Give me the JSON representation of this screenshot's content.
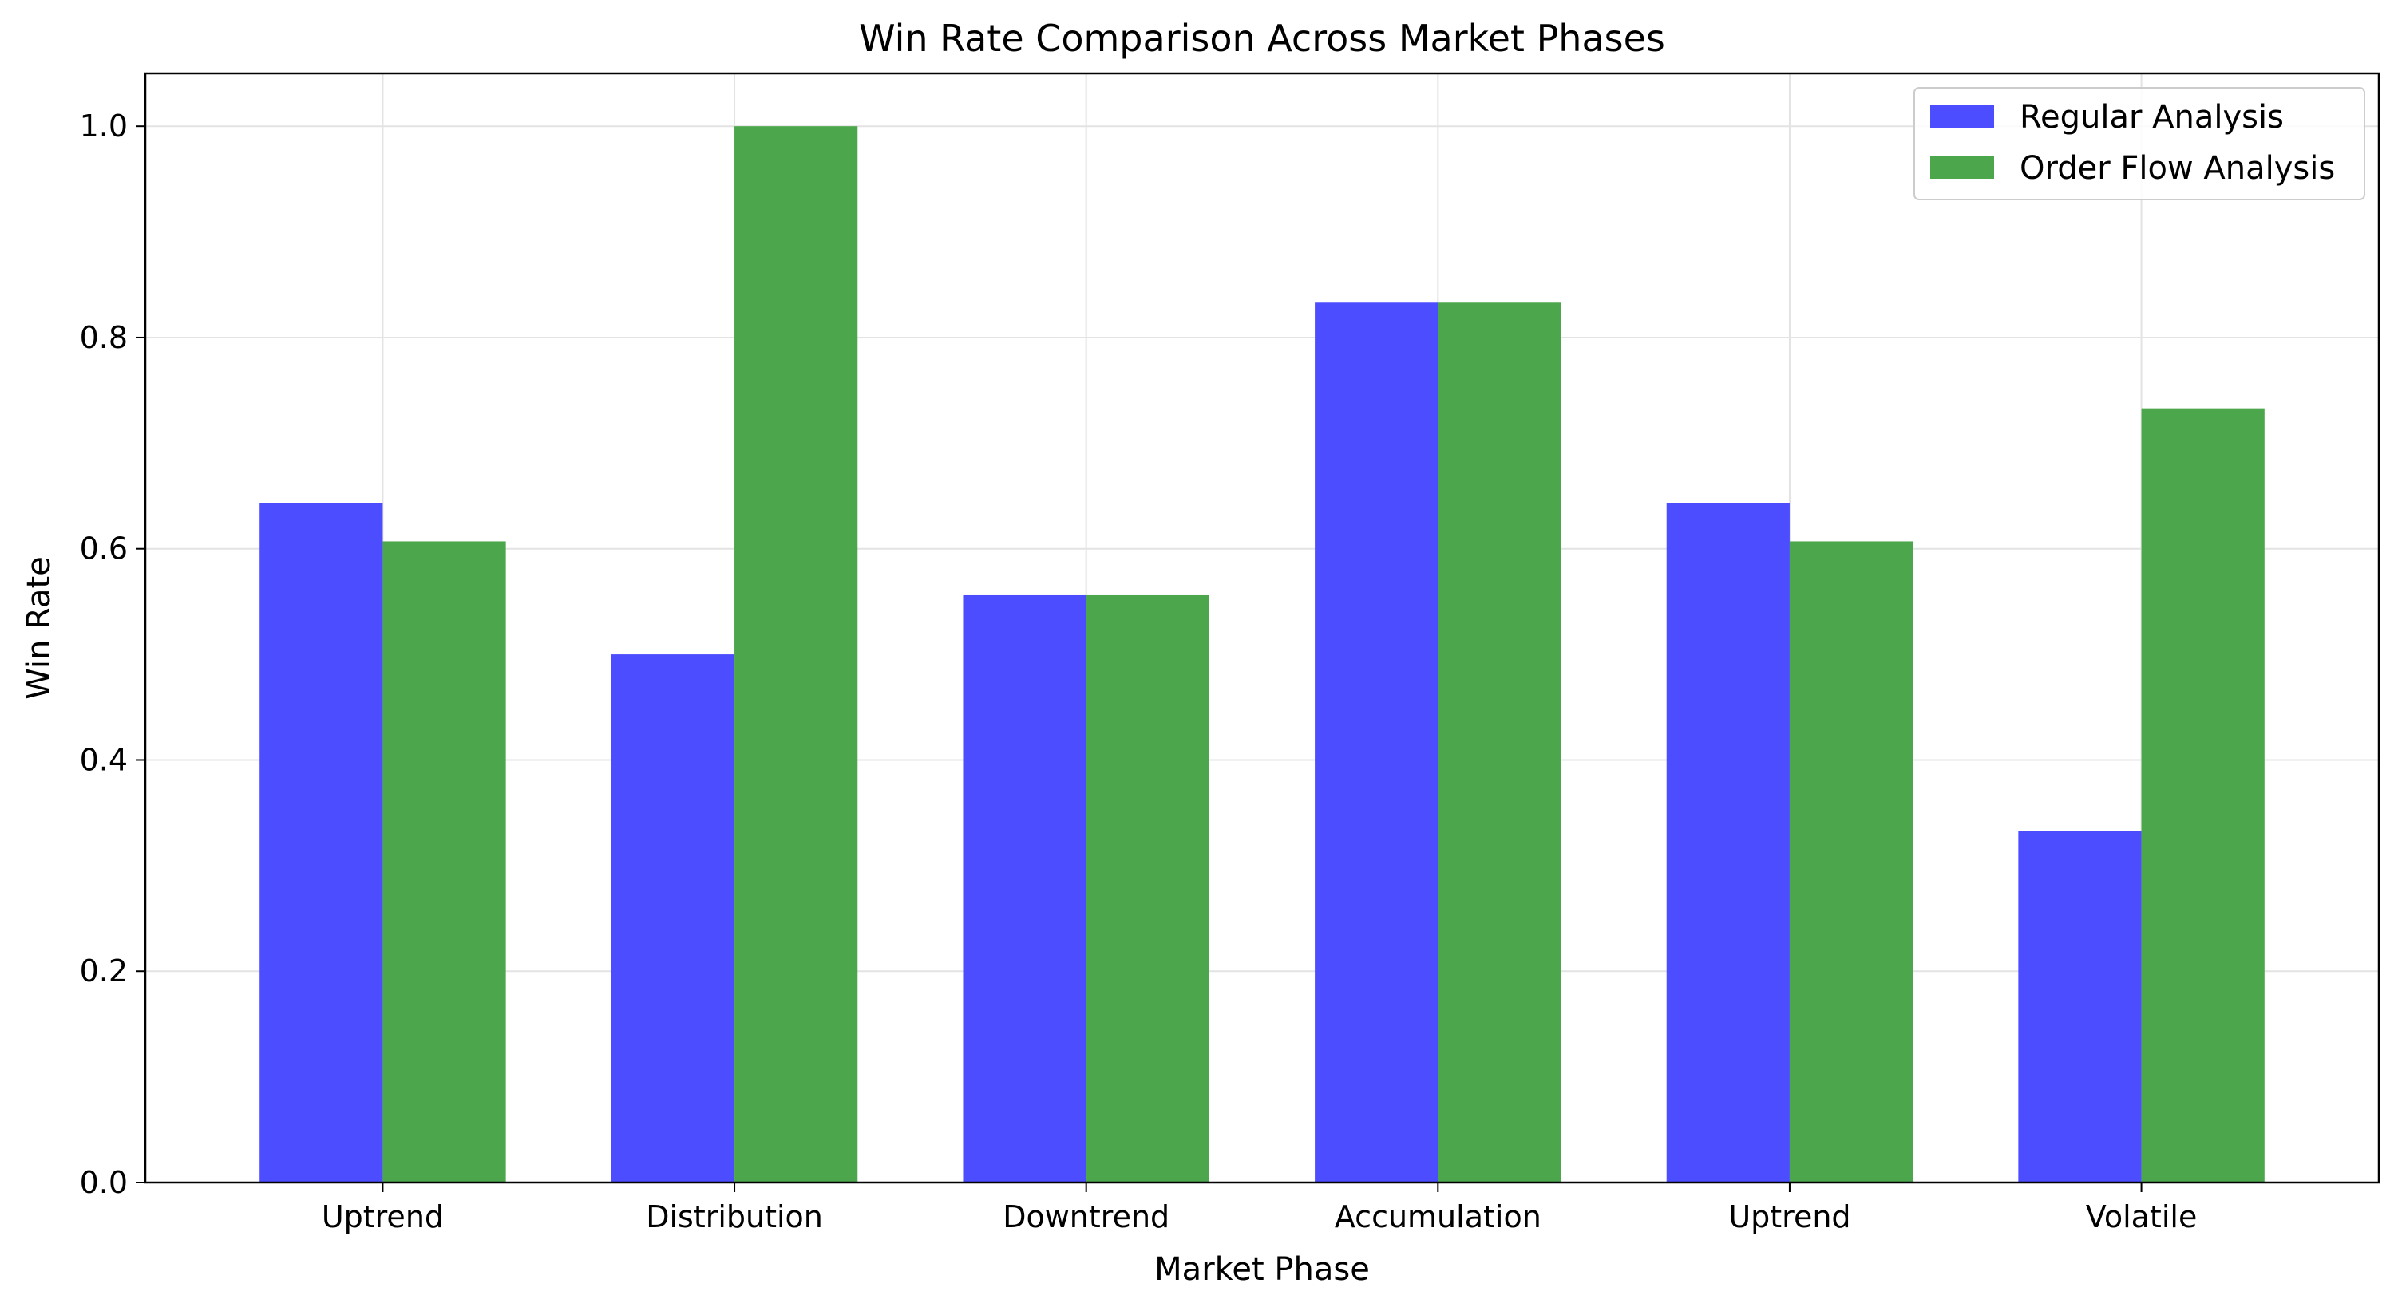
{
  "chart_data": {
    "type": "bar",
    "title": "Win Rate Comparison Across Market Phases",
    "xlabel": "Market Phase",
    "ylabel": "Win Rate",
    "categories": [
      "Uptrend",
      "Distribution",
      "Downtrend",
      "Accumulation",
      "Uptrend",
      "Volatile"
    ],
    "series": [
      {
        "name": "Regular Analysis",
        "color": "#4b4dff",
        "values": [
          0.643,
          0.5,
          0.556,
          0.833,
          0.643,
          0.333
        ]
      },
      {
        "name": "Order Flow Analysis",
        "color": "#4ca64c",
        "values": [
          0.607,
          1.0,
          0.556,
          0.833,
          0.607,
          0.733
        ]
      }
    ],
    "ylim": [
      0,
      1.05
    ],
    "yticks": [
      "0.0",
      "0.2",
      "0.4",
      "0.6",
      "0.8",
      "1.0"
    ],
    "grid": true,
    "legend_position": "top-right"
  }
}
